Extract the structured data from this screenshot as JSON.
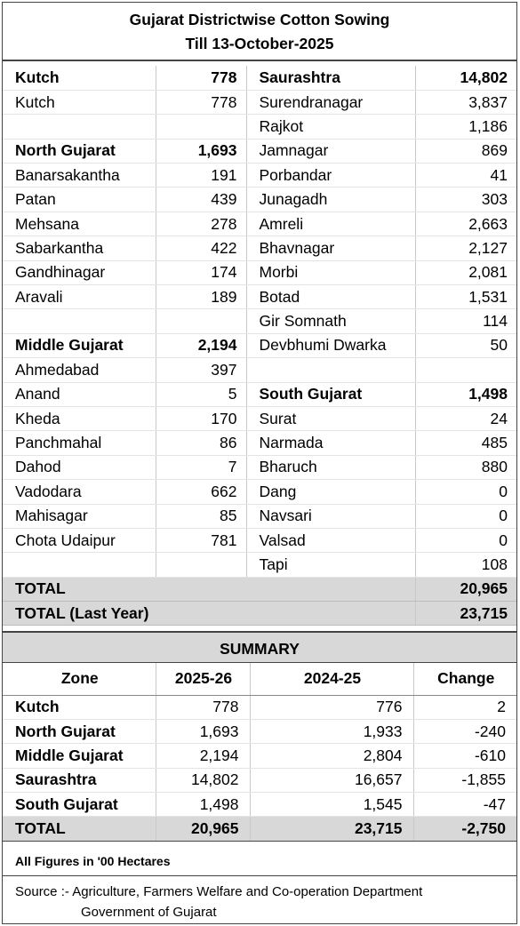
{
  "title": {
    "line1": "Gujarat Districtwise Cotton Sowing",
    "line2": "Till 13-October-2025"
  },
  "left_rows": [
    {
      "name": "Kutch",
      "value": "778",
      "bold": true
    },
    {
      "name": "Kutch",
      "value": "778",
      "bold": false
    },
    {
      "name": "",
      "value": "",
      "bold": false
    },
    {
      "name": "North Gujarat",
      "value": "1,693",
      "bold": true
    },
    {
      "name": "Banarsakantha",
      "value": "191",
      "bold": false
    },
    {
      "name": "Patan",
      "value": "439",
      "bold": false
    },
    {
      "name": "Mehsana",
      "value": "278",
      "bold": false
    },
    {
      "name": "Sabarkantha",
      "value": "422",
      "bold": false
    },
    {
      "name": "Gandhinagar",
      "value": "174",
      "bold": false
    },
    {
      "name": "Aravali",
      "value": "189",
      "bold": false
    },
    {
      "name": "",
      "value": "",
      "bold": false
    },
    {
      "name": "Middle Gujarat",
      "value": "2,194",
      "bold": true
    },
    {
      "name": "Ahmedabad",
      "value": "397",
      "bold": false
    },
    {
      "name": "Anand",
      "value": "5",
      "bold": false
    },
    {
      "name": "Kheda",
      "value": "170",
      "bold": false
    },
    {
      "name": "Panchmahal",
      "value": "86",
      "bold": false
    },
    {
      "name": "Dahod",
      "value": "7",
      "bold": false
    },
    {
      "name": "Vadodara",
      "value": "662",
      "bold": false
    },
    {
      "name": "Mahisagar",
      "value": "85",
      "bold": false
    },
    {
      "name": "Chota Udaipur",
      "value": "781",
      "bold": false
    },
    {
      "name": "",
      "value": "",
      "bold": false
    }
  ],
  "right_rows": [
    {
      "name": "Saurashtra",
      "value": "14,802",
      "bold": true
    },
    {
      "name": "Surendranagar",
      "value": "3,837",
      "bold": false
    },
    {
      "name": "Rajkot",
      "value": "1,186",
      "bold": false
    },
    {
      "name": "Jamnagar",
      "value": "869",
      "bold": false
    },
    {
      "name": "Porbandar",
      "value": "41",
      "bold": false
    },
    {
      "name": "Junagadh",
      "value": "303",
      "bold": false
    },
    {
      "name": "Amreli",
      "value": "2,663",
      "bold": false
    },
    {
      "name": "Bhavnagar",
      "value": "2,127",
      "bold": false
    },
    {
      "name": "Morbi",
      "value": "2,081",
      "bold": false
    },
    {
      "name": "Botad",
      "value": "1,531",
      "bold": false
    },
    {
      "name": "Gir Somnath",
      "value": "114",
      "bold": false
    },
    {
      "name": "Devbhumi Dwarka",
      "value": "50",
      "bold": false
    },
    {
      "name": "",
      "value": "",
      "bold": false
    },
    {
      "name": "South Gujarat",
      "value": "1,498",
      "bold": true
    },
    {
      "name": "Surat",
      "value": "24",
      "bold": false
    },
    {
      "name": "Narmada",
      "value": "485",
      "bold": false
    },
    {
      "name": "Bharuch",
      "value": "880",
      "bold": false
    },
    {
      "name": "Dang",
      "value": "0",
      "bold": false
    },
    {
      "name": "Navsari",
      "value": "0",
      "bold": false
    },
    {
      "name": "Valsad",
      "value": "0",
      "bold": false
    },
    {
      "name": "Tapi",
      "value": "108",
      "bold": false
    }
  ],
  "totals": {
    "total_label": "TOTAL",
    "total_value": "20,965",
    "last_year_label": "TOTAL (Last Year)",
    "last_year_value": "23,715"
  },
  "summary": {
    "title": "SUMMARY",
    "headers": [
      "Zone",
      "2025-26",
      "2024-25",
      "Change"
    ],
    "rows": [
      [
        "Kutch",
        "778",
        "776",
        "2"
      ],
      [
        "North Gujarat",
        "1,693",
        "1,933",
        "-240"
      ],
      [
        "Middle Gujarat",
        "2,194",
        "2,804",
        "-610"
      ],
      [
        "Saurashtra",
        "14,802",
        "16,657",
        "-1,855"
      ],
      [
        "South Gujarat",
        "1,498",
        "1,545",
        "-47"
      ]
    ],
    "total": [
      "TOTAL",
      "20,965",
      "23,715",
      "-2,750"
    ]
  },
  "note": "All Figures in '00 Hectares",
  "source": {
    "line1": "Source :- Agriculture, Farmers Welfare and Co-operation Department",
    "line2": "Government of Gujarat"
  }
}
